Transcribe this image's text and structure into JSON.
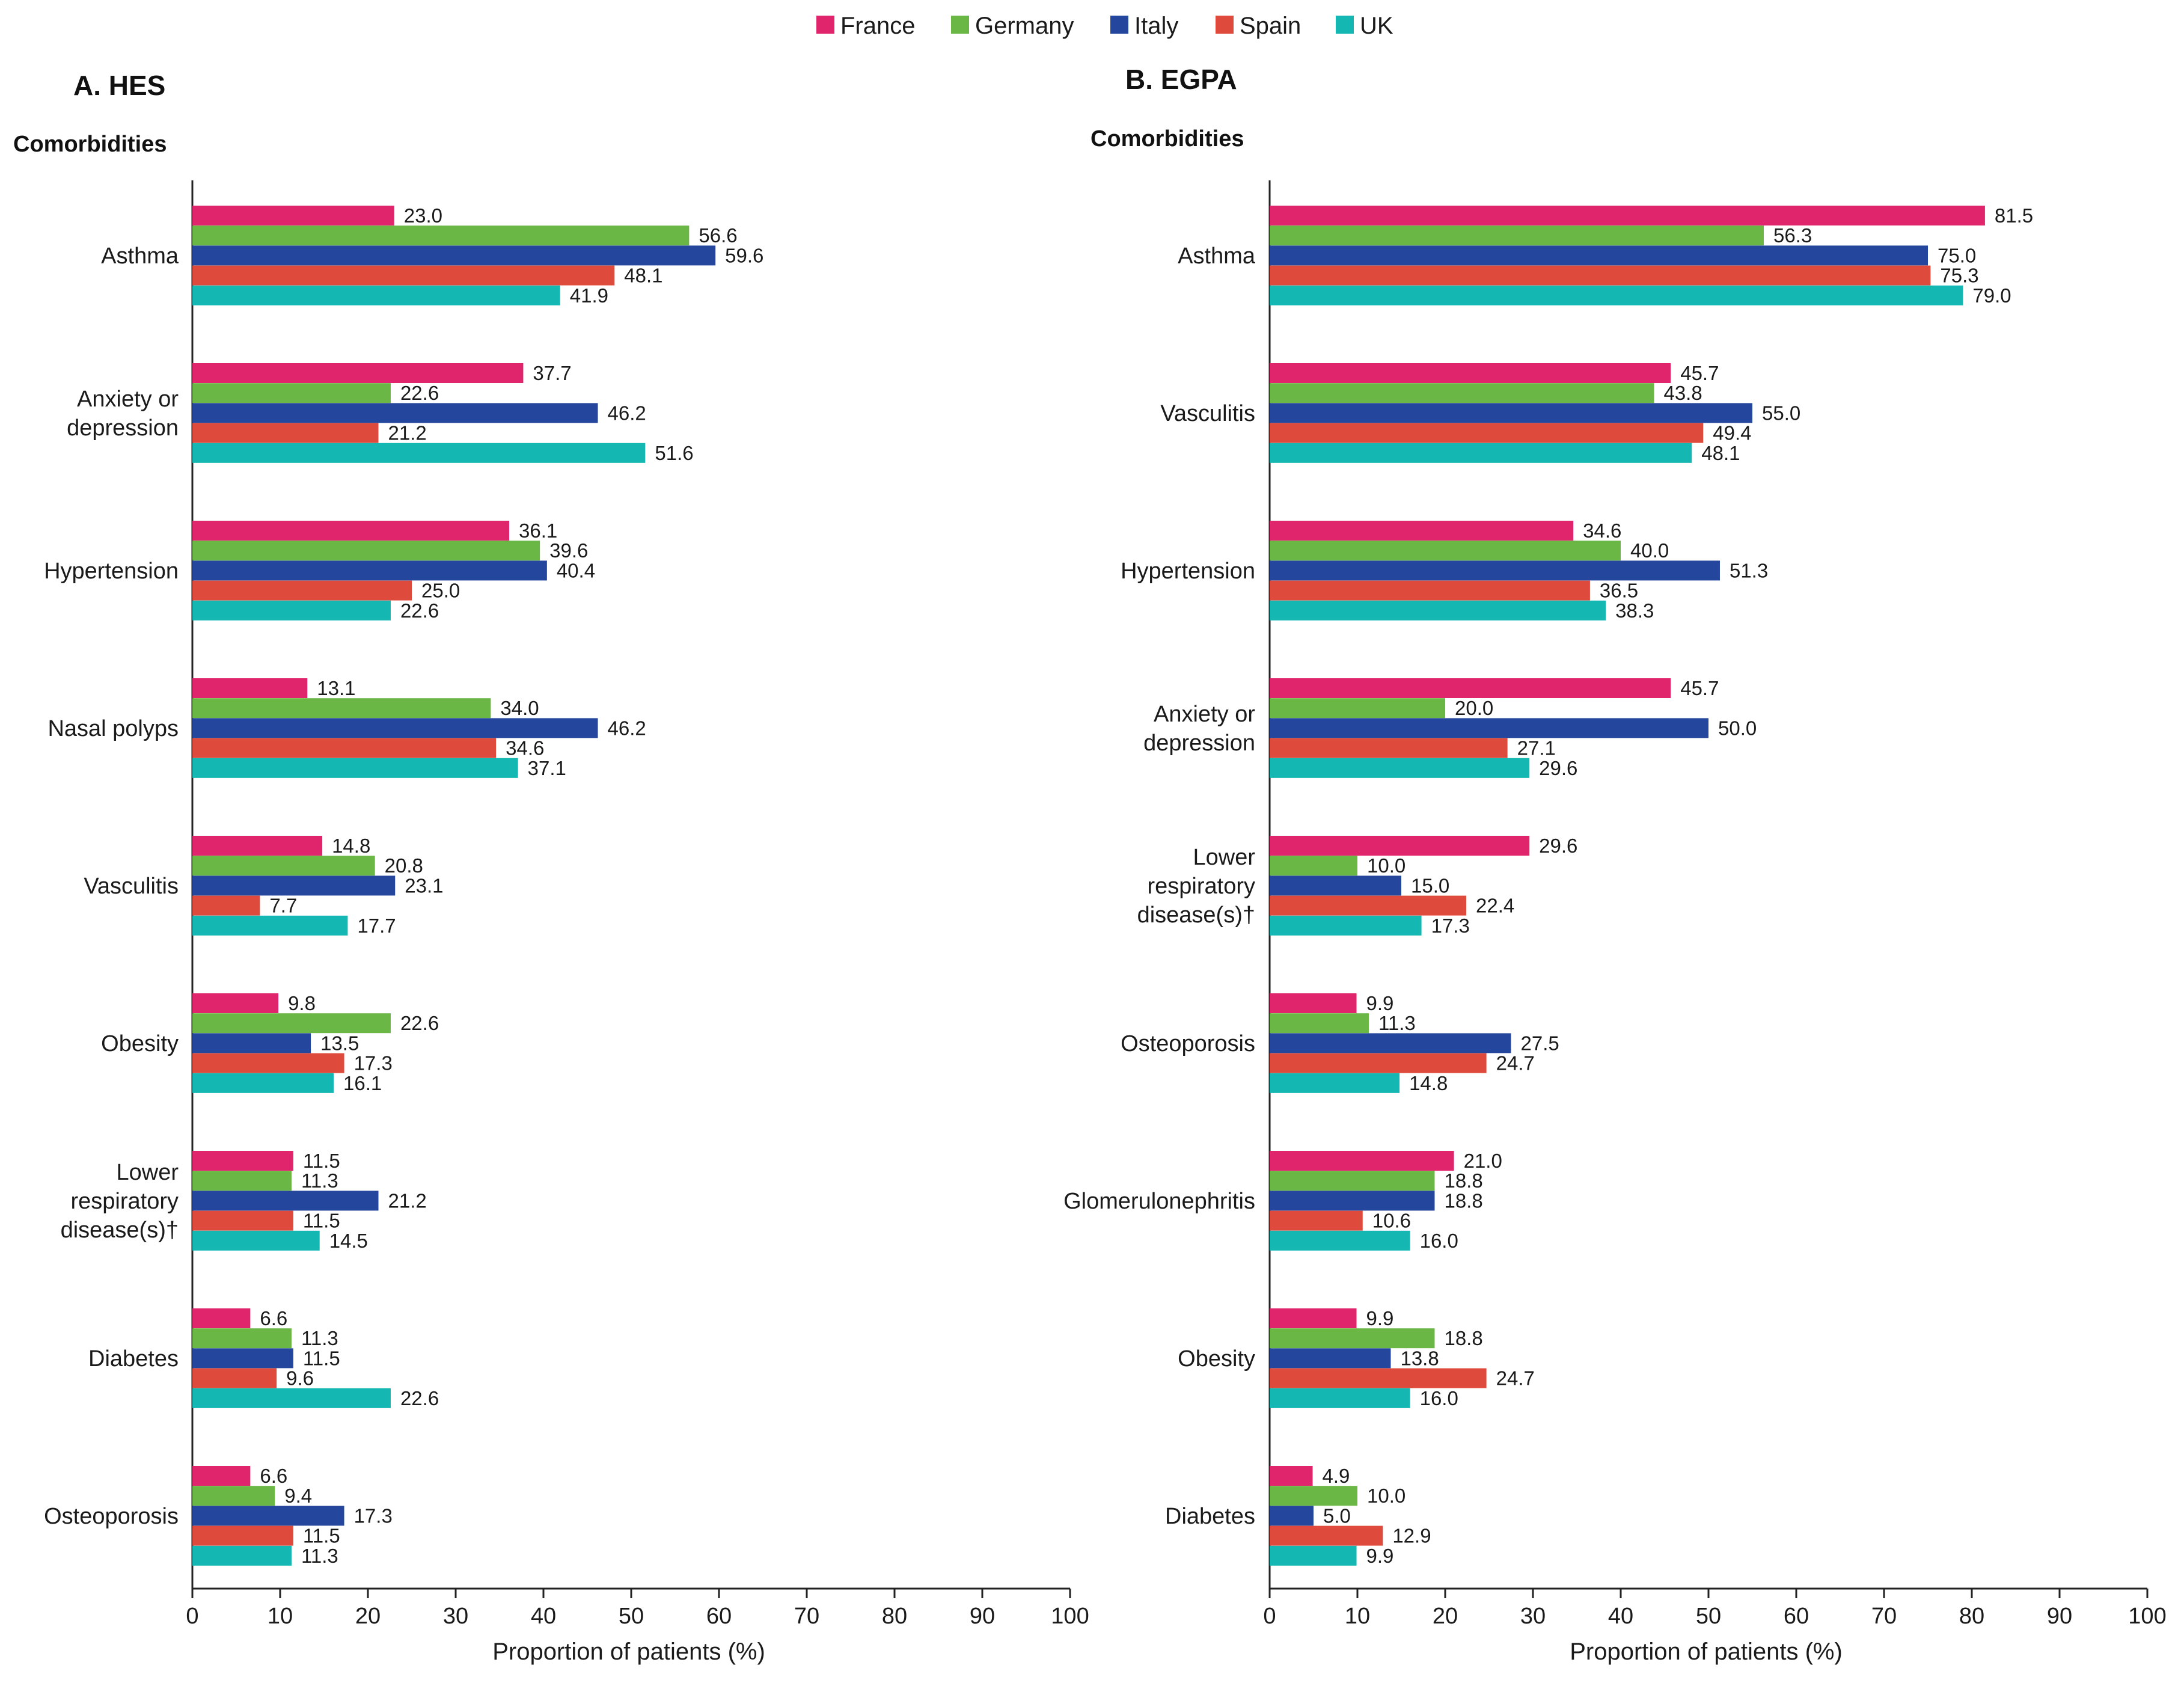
{
  "legend": [
    {
      "name": "France",
      "color": "#e0256d"
    },
    {
      "name": "Germany",
      "color": "#6bb745"
    },
    {
      "name": "Italy",
      "color": "#24469c"
    },
    {
      "name": "Spain",
      "color": "#de4b3c"
    },
    {
      "name": "UK",
      "color": "#14b7b1"
    }
  ],
  "chart_data": [
    {
      "type": "bar",
      "orientation": "horizontal",
      "title": "A. HES",
      "subtitle": "Comorbidities",
      "xlabel": "Proportion of patients (%)",
      "xlim": [
        0,
        100
      ],
      "xticks": [
        "0",
        "10",
        "20",
        "30",
        "40",
        "50",
        "60",
        "70",
        "80",
        "90",
        "100"
      ],
      "categories": [
        [
          "Asthma"
        ],
        [
          "Anxiety or",
          "depression"
        ],
        [
          "Hypertension"
        ],
        [
          "Nasal polyps"
        ],
        [
          "Vasculitis"
        ],
        [
          "Obesity"
        ],
        [
          "Lower",
          "respiratory",
          "disease(s)†"
        ],
        [
          "Diabetes"
        ],
        [
          "Osteoporosis"
        ]
      ],
      "series": [
        {
          "name": "France",
          "values": [
            23.0,
            37.7,
            36.1,
            13.1,
            14.8,
            9.8,
            11.5,
            6.6,
            6.6
          ],
          "labels": [
            "23.0",
            "37.7",
            "36.1",
            "13.1",
            "14.8",
            "9.8",
            "11.5",
            "6.6",
            "6.6"
          ]
        },
        {
          "name": "Germany",
          "values": [
            56.6,
            22.6,
            39.6,
            34.0,
            20.8,
            22.6,
            11.3,
            11.3,
            9.4
          ],
          "labels": [
            "56.6",
            "22.6",
            "39.6",
            "34.0",
            "20.8",
            "22.6",
            "11.3",
            "11.3",
            "9.4"
          ]
        },
        {
          "name": "Italy",
          "values": [
            59.6,
            46.2,
            40.4,
            46.2,
            23.1,
            13.5,
            21.2,
            11.5,
            17.3
          ],
          "labels": [
            "59.6",
            "46.2",
            "40.4",
            "46.2",
            "23.1",
            "13.5",
            "21.2",
            "11.5",
            "17.3"
          ]
        },
        {
          "name": "Spain",
          "values": [
            48.1,
            21.2,
            25.0,
            34.6,
            7.7,
            17.3,
            11.5,
            9.6,
            11.5
          ],
          "labels": [
            "48.1",
            "21.2",
            "25.0",
            "34.6",
            "7.7",
            "17.3",
            "11.5",
            "9.6",
            "11.5"
          ]
        },
        {
          "name": "UK",
          "values": [
            41.9,
            51.6,
            22.6,
            37.1,
            17.7,
            16.1,
            14.5,
            22.6,
            11.3
          ],
          "labels": [
            "41.9",
            "51.6",
            "22.6",
            "37.1",
            "17.7",
            "16.1",
            "14.5",
            "22.6",
            "11.3"
          ]
        }
      ]
    },
    {
      "type": "bar",
      "orientation": "horizontal",
      "title": "B. EGPA",
      "subtitle": "Comorbidities",
      "xlabel": "Proportion of patients (%)",
      "xlim": [
        0,
        100
      ],
      "xticks": [
        "0",
        "10",
        "20",
        "30",
        "40",
        "50",
        "60",
        "70",
        "80",
        "90",
        "100"
      ],
      "categories": [
        [
          "Asthma"
        ],
        [
          "Vasculitis"
        ],
        [
          "Hypertension"
        ],
        [
          "Anxiety or",
          "depression"
        ],
        [
          "Lower",
          "respiratory",
          "disease(s)†"
        ],
        [
          "Osteoporosis"
        ],
        [
          "Glomerulonephritis"
        ],
        [
          "Obesity"
        ],
        [
          "Diabetes"
        ]
      ],
      "series": [
        {
          "name": "France",
          "values": [
            81.5,
            45.7,
            34.6,
            45.7,
            29.6,
            9.9,
            21.0,
            9.9,
            4.9
          ],
          "labels": [
            "81.5",
            "45.7",
            "34.6",
            "45.7",
            "29.6",
            "9.9",
            "21.0",
            "9.9",
            "4.9"
          ]
        },
        {
          "name": "Germany",
          "values": [
            56.3,
            43.8,
            40.0,
            20.0,
            10.0,
            11.3,
            18.8,
            18.8,
            10.0
          ],
          "labels": [
            "56.3",
            "43.8",
            "40.0",
            "20.0",
            "10.0",
            "11.3",
            "18.8",
            "18.8",
            "10.0"
          ]
        },
        {
          "name": "Italy",
          "values": [
            75.0,
            55.0,
            51.3,
            50.0,
            15.0,
            27.5,
            18.8,
            13.8,
            5.0
          ],
          "labels": [
            "75.0",
            "55.0",
            "51.3",
            "50.0",
            "15.0",
            "27.5",
            "18.8",
            "13.8",
            "5.0"
          ]
        },
        {
          "name": "Spain",
          "values": [
            75.3,
            49.4,
            36.5,
            27.1,
            22.4,
            24.7,
            10.6,
            24.7,
            12.9
          ],
          "labels": [
            "75.3",
            "49.4",
            "36.5",
            "27.1",
            "22.4",
            "24.7",
            "10.6",
            "24.7",
            "12.9"
          ]
        },
        {
          "name": "UK",
          "values": [
            79.0,
            48.1,
            38.3,
            29.6,
            17.3,
            14.8,
            16.0,
            16.0,
            9.9
          ],
          "labels": [
            "79.0",
            "48.1",
            "38.3",
            "29.6",
            "17.3",
            "14.8",
            "16.0",
            "16.0",
            "9.9"
          ]
        }
      ]
    }
  ]
}
